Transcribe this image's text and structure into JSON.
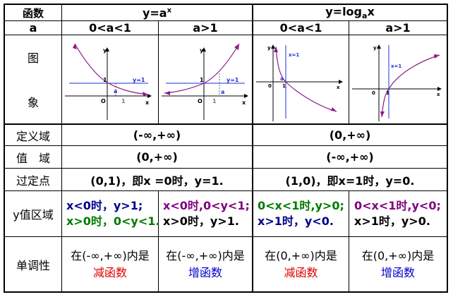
{
  "header": {
    "label_func": "函数",
    "label_a": "a",
    "exp_title_pre": "y=a",
    "exp_title_sup": "x",
    "log_title_pre": "y=log",
    "log_title_sub": "a",
    "log_title_post": "x",
    "range_small": "0<a<1",
    "range_big": "a>1"
  },
  "rows": {
    "graph_label_1": "图",
    "graph_label_2": "象",
    "domain_label": "定义域",
    "value_label": "值　域",
    "point_label": "过定点",
    "region_label": "y值区域",
    "mono_label": "单调性"
  },
  "exp": {
    "domain": "(-∞,+∞)",
    "range": "(0,+∞)",
    "point": "(0,1)，即x =0时，y=1.",
    "small_region_1": "x<0时，y>1;",
    "small_region_2": "x>0时，0<y<1.",
    "big_region_1": "x<0时,0<y<1;",
    "big_region_2": "x>0时，y>1.",
    "small_mono": "在(-∞,+∞)内是",
    "small_mono_kind": "减函数",
    "big_mono": "在(-∞,+∞)内是",
    "big_mono_kind": "增函数"
  },
  "log": {
    "domain": "(0,+∞)",
    "range": "(-∞,+∞)",
    "point": "(1,0)，即x=1时，y=0.",
    "small_region_1": "0<x<1时,y>0;",
    "small_region_2": "x>1时，y<0.",
    "big_region_1": "0<x<1时,y<0;",
    "big_region_2": "x>1时，y>0.",
    "small_mono": "在(0,+∞)内是",
    "small_mono_kind": "减函数",
    "big_mono": "在(0,+∞)内是",
    "big_mono_kind": "增函数"
  },
  "graphs": {
    "axis_x": "x",
    "axis_y": "y",
    "origin": "O",
    "origin_small": "0",
    "one": "1",
    "a_label": "a",
    "line_y1": "y=1",
    "line_x1": "x=1"
  },
  "colors": {
    "curve": "#8B1A8B",
    "line": "#1f2fd6",
    "red": "#e00000",
    "blue": "#0000cc",
    "green": "#007a00",
    "purple": "#800080",
    "navy": "#00008b"
  }
}
